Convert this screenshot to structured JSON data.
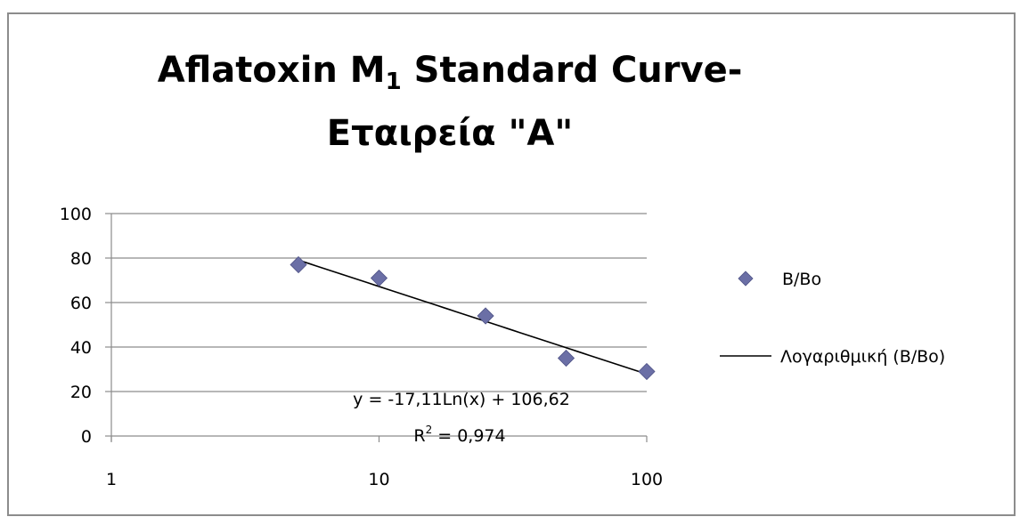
{
  "chart_data": {
    "type": "scatter",
    "title_line1": "Aflatoxin M",
    "title_subscript": "1",
    "title_line1_suffix": " Standard Curve-",
    "title_line2": "Εταιρεία \"A\"",
    "xlabel": "",
    "ylabel": "",
    "xscale": "log",
    "xlim": [
      1,
      100
    ],
    "ylim": [
      0,
      100
    ],
    "x_ticks": [
      1,
      10,
      100
    ],
    "y_ticks": [
      0,
      20,
      40,
      60,
      80,
      100
    ],
    "grid": "horizontal",
    "legend_placement": "right",
    "series": [
      {
        "name": "B/Bo",
        "marker": "diamond",
        "color": "#6b6fa6",
        "x": [
          5,
          10,
          25,
          50,
          100
        ],
        "y": [
          77,
          71,
          54,
          35,
          29
        ]
      }
    ],
    "trendline": {
      "name": "Λογαριθμική (B/Bo)",
      "kind": "logarithmic",
      "a": -17.11,
      "b": 106.62,
      "color": "#000000",
      "equation_label": "y = -17,11Ln(x) + 106,62",
      "r2_label_prefix": "R",
      "r2_label_sup": "2",
      "r2_label_suffix": " = 0,974"
    },
    "colors": {
      "gridline": "#8c8c8c",
      "axis": "#8c8c8c",
      "frame": "#8c8c8c"
    }
  }
}
